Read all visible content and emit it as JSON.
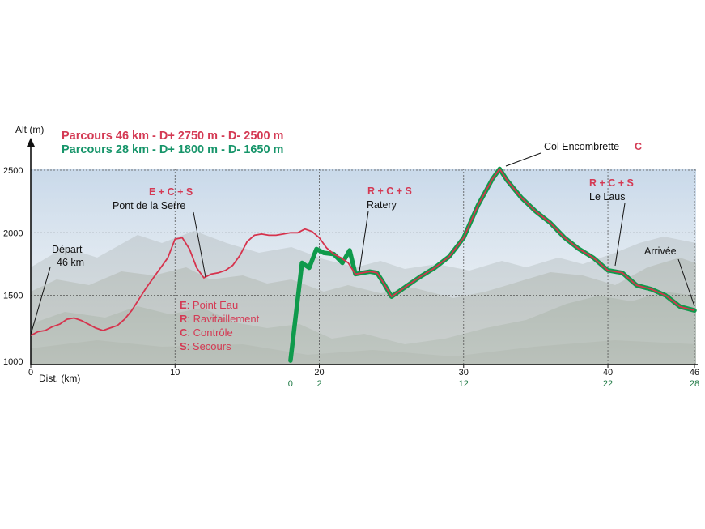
{
  "colors": {
    "route_long": "#d6334d",
    "route_short": "#0f9a4c",
    "label_red": "#d43a54",
    "label_green": "#17956a",
    "grid": "#555555"
  },
  "titles": {
    "long": "Parcours 46 km - D+ 2750 m - D- 2500 m",
    "short": "Parcours 28 km - D+ 1800 m - D- 1650 m"
  },
  "chart_data": {
    "type": "line",
    "ylabel": "Alt (m)",
    "xlabel": "Dist. (km)",
    "xlim": [
      0,
      46
    ],
    "ylim": [
      1000,
      2600
    ],
    "y_ticks": [
      1000,
      1500,
      2000,
      2500
    ],
    "x_ticks": [
      0,
      10,
      20,
      30,
      40,
      46
    ],
    "secondary_x_ticks": [
      {
        "value": "0",
        "at_km": 18
      },
      {
        "value": "2",
        "at_km": 20
      },
      {
        "value": "12",
        "at_km": 30
      },
      {
        "value": "22",
        "at_km": 40
      },
      {
        "value": "28",
        "at_km": 46
      }
    ],
    "grid": "dotted",
    "series": [
      {
        "name": "Parcours 46 km - D+ 2750 m - D- 2500 m",
        "x": [
          0,
          0.5,
          1,
          1.5,
          2,
          2.5,
          3,
          3.5,
          4,
          4.5,
          5,
          5.5,
          6,
          6.5,
          7,
          7.5,
          8,
          8.5,
          9,
          9.5,
          10,
          10.5,
          11,
          11.5,
          12,
          12.5,
          13,
          13.5,
          14,
          14.5,
          15,
          15.5,
          16,
          16.5,
          17,
          17.5,
          18,
          18.5,
          19,
          19.5,
          20,
          20.5,
          21,
          21.5,
          22,
          22.5,
          23,
          23.5,
          24,
          24.5,
          25,
          26,
          27,
          28,
          29,
          30,
          31,
          32,
          32.5,
          33,
          34,
          35,
          36,
          37,
          38,
          39,
          40,
          41,
          42,
          43,
          44,
          45,
          46
        ],
        "y": [
          1180,
          1210,
          1220,
          1250,
          1270,
          1310,
          1320,
          1300,
          1270,
          1240,
          1220,
          1240,
          1260,
          1310,
          1380,
          1470,
          1560,
          1640,
          1720,
          1800,
          1950,
          1960,
          1870,
          1720,
          1640,
          1670,
          1680,
          1700,
          1740,
          1820,
          1930,
          1980,
          1990,
          1980,
          1980,
          1990,
          2000,
          2000,
          2030,
          2010,
          1960,
          1880,
          1830,
          1800,
          1760,
          1670,
          1680,
          1690,
          1680,
          1590,
          1490,
          1570,
          1650,
          1720,
          1810,
          1960,
          2220,
          2430,
          2510,
          2420,
          2280,
          2170,
          2080,
          1960,
          1870,
          1800,
          1700,
          1680,
          1580,
          1550,
          1500,
          1410,
          1380
        ]
      },
      {
        "name": "Parcours 28 km - D+ 1800 m - D- 1650 m",
        "x": [
          18,
          18.8,
          19.3,
          19.8,
          20.3,
          21,
          21.6,
          22.1,
          22.5,
          23,
          23.5,
          24,
          24.5,
          25,
          26,
          27,
          28,
          29,
          30,
          31,
          32,
          32.5,
          33,
          34,
          35,
          36,
          37,
          38,
          39,
          40,
          41,
          42,
          43,
          44,
          45,
          46
        ],
        "y": [
          980,
          1760,
          1720,
          1870,
          1840,
          1830,
          1760,
          1860,
          1670,
          1680,
          1690,
          1680,
          1590,
          1490,
          1570,
          1650,
          1720,
          1810,
          1960,
          2220,
          2430,
          2510,
          2420,
          2280,
          2170,
          2080,
          1960,
          1870,
          1800,
          1700,
          1680,
          1580,
          1550,
          1500,
          1410,
          1380
        ]
      }
    ],
    "annotations": [
      {
        "code": "",
        "name": "Départ\n46 km",
        "km": 0,
        "alt": 1180
      },
      {
        "code": "E + C + S",
        "name": "Pont de la Serre",
        "km": 12,
        "alt": 1640
      },
      {
        "code": "R + C + S",
        "name": "Ratery",
        "km": 22.5,
        "alt": 1670
      },
      {
        "code": "C",
        "name": "Col Encombrette",
        "km": 32.5,
        "alt": 2510
      },
      {
        "code": "R + C + S",
        "name": "Le Laus",
        "km": 40,
        "alt": 1700
      },
      {
        "code": "",
        "name": "Arrivée",
        "km": 46,
        "alt": 1380
      }
    ]
  },
  "legend": [
    {
      "key": "E",
      "text": ": Point Eau"
    },
    {
      "key": "R",
      "text": ": Ravitaillement"
    },
    {
      "key": "C",
      "text": ": Contrôle"
    },
    {
      "key": "S",
      "text": ": Secours"
    }
  ]
}
